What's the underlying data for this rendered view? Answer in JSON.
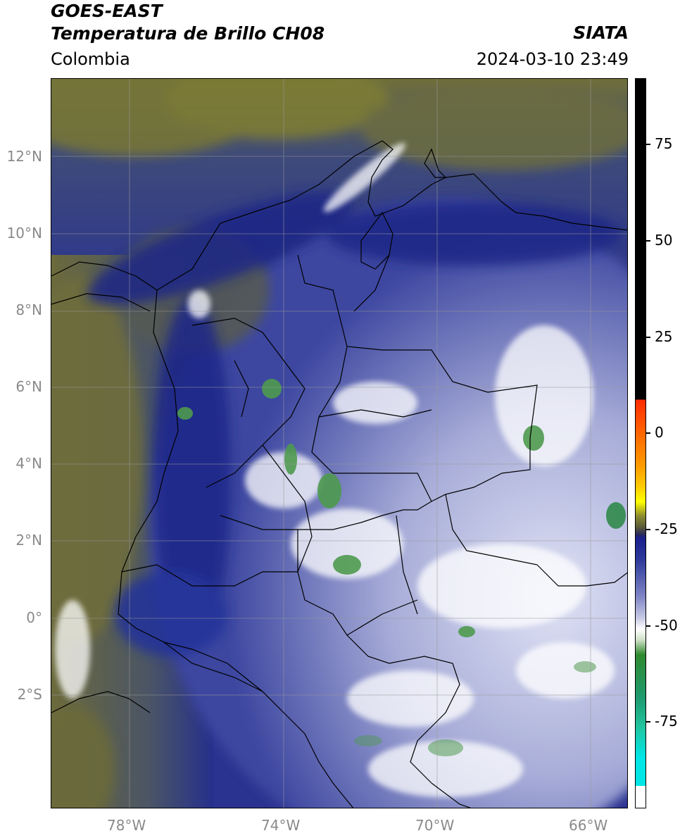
{
  "header": {
    "title_line1": "GOES-EAST",
    "title_line2": "Temperatura de Brillo CH08",
    "region": "Colombia",
    "organization": "SIATA",
    "timestamp": "2024-03-10 23:49"
  },
  "map": {
    "lat_labels": [
      "12°N",
      "10°N",
      "8°N",
      "6°N",
      "4°N",
      "2°N",
      "0°",
      "2°S"
    ],
    "lon_labels": [
      "78°W",
      "74°W",
      "70°W",
      "66°W"
    ],
    "colors": {
      "ocean_warm": "#7a7a3a",
      "ocean_mid": "#5c6a5a",
      "cold_dark": "#1f2a8a",
      "cold_mid": "#4b55a8",
      "cloud_light": "#a9b0dc",
      "cloud_white": "#e9ecf8",
      "convective_green": "#4f9e4f",
      "borders": "#000000",
      "grid": "#9a9a9a"
    }
  },
  "colorbar": {
    "labels": [
      "75",
      "50",
      "25",
      "0",
      "-25",
      "-50",
      "-75"
    ],
    "colors": [
      "#000000",
      "#ff2a00",
      "#ff9a00",
      "#ffff00",
      "#6b6b30",
      "#1a1f8c",
      "#ffffff",
      "#2f8a2f",
      "#20c5a0",
      "#00e5e5",
      "#ffffff"
    ]
  }
}
